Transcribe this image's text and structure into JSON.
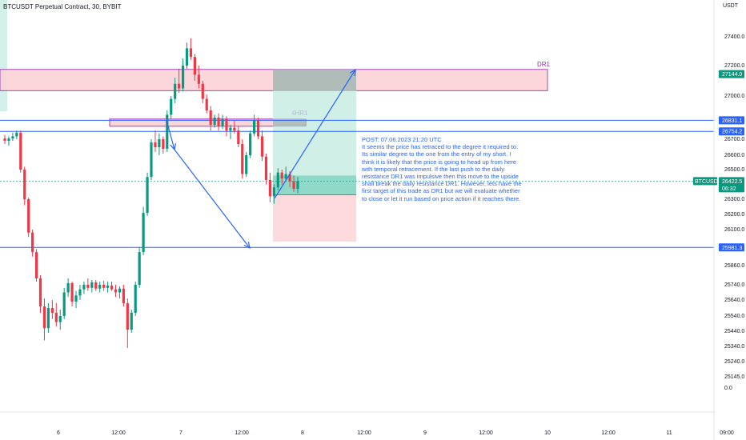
{
  "header": {
    "title": "BTCUSDT Perpetual Contract, 30, BYBIT",
    "currency": "USDT"
  },
  "note": {
    "heading": "POST: 07.06.2023 21:20 UTC",
    "body": "It seems the price has retraced to the degree it required to. Its similar degree to the one from the entry of my short. I think it is likely that the price is going to head up from here with temporal retracement. If the last push to the daily resistance DR1 was impulsive then this move to the upside shall break the daily resistance DR1. However, lets have the first target of this trade as DR1 but we will evaluate whether to close or let it run based on price action if it reaches there."
  },
  "chart_data": {
    "type": "candlestick",
    "symbol": "BTCUSDT.P",
    "y_ticks": [
      "27400.0",
      "27200.0",
      "27000.0",
      "26700.0",
      "26600.0",
      "26500.0",
      "26300.0",
      "26200.0",
      "26100.0",
      "25860.0",
      "25740.0",
      "25640.0",
      "25540.0",
      "25440.0",
      "25340.0",
      "25240.0",
      "25145.0",
      "0.0"
    ],
    "x_ticks": [
      "6",
      "12:00",
      "7",
      "12:00",
      "8",
      "12:00",
      "9",
      "12:00",
      "10",
      "12:00",
      "11",
      "09:00"
    ],
    "price_tags": [
      {
        "label": "27144.0",
        "color": "#089981"
      },
      {
        "label": "26831.1",
        "color": "#2962ff"
      },
      {
        "label": "26754.2",
        "color": "#2962ff"
      },
      {
        "label": "BTCUSDT.P",
        "color": "#089981"
      },
      {
        "label": "26422.5",
        "color": "#089981"
      },
      {
        "label": "06:32",
        "color": "#089981"
      },
      {
        "label": "25981.3",
        "color": "#2962ff"
      }
    ],
    "horizontal_levels": [
      26831.1,
      26754.2,
      25981.3
    ],
    "zones": [
      {
        "label": "DR1",
        "from": 27035,
        "to": 27175,
        "color": "#f23645"
      },
      {
        "label": "4HR1",
        "from": 26790,
        "to": 26840,
        "color": "#f23645"
      }
    ],
    "position": {
      "side": "long",
      "entry": 26330,
      "target": 27175,
      "stop": 26020
    },
    "candles": [
      [
        26705,
        26730,
        26670,
        26690
      ],
      [
        26690,
        26720,
        26660,
        26705
      ],
      [
        26705,
        26745,
        26690,
        26720
      ],
      [
        26720,
        26760,
        26700,
        26745
      ],
      [
        26745,
        26760,
        26480,
        26500
      ],
      [
        26500,
        26520,
        26260,
        26300
      ],
      [
        26300,
        26310,
        26050,
        26080
      ],
      [
        26080,
        26100,
        25920,
        25950
      ],
      [
        25950,
        25970,
        25760,
        25780
      ],
      [
        25780,
        25800,
        25560,
        25600
      ],
      [
        25600,
        25650,
        25380,
        25460
      ],
      [
        25460,
        25620,
        25430,
        25590
      ],
      [
        25590,
        25640,
        25520,
        25560
      ],
      [
        25560,
        25620,
        25470,
        25500
      ],
      [
        25500,
        25580,
        25450,
        25540
      ],
      [
        25540,
        25720,
        25520,
        25690
      ],
      [
        25690,
        25780,
        25660,
        25750
      ],
      [
        25750,
        25760,
        25600,
        25630
      ],
      [
        25630,
        25700,
        25590,
        25670
      ],
      [
        25670,
        25740,
        25640,
        25710
      ],
      [
        25710,
        25760,
        25680,
        25740
      ],
      [
        25740,
        25780,
        25700,
        25720
      ],
      [
        25720,
        25770,
        25690,
        25755
      ],
      [
        25755,
        25770,
        25700,
        25715
      ],
      [
        25715,
        25760,
        25690,
        25740
      ],
      [
        25740,
        25765,
        25700,
        25720
      ],
      [
        25720,
        25760,
        25690,
        25735
      ],
      [
        25735,
        25760,
        25700,
        25710
      ],
      [
        25710,
        25740,
        25660,
        25690
      ],
      [
        25690,
        25730,
        25650,
        25715
      ],
      [
        25715,
        25740,
        25600,
        25620
      ],
      [
        25620,
        25650,
        25330,
        25450
      ],
      [
        25450,
        25580,
        25430,
        25560
      ],
      [
        25560,
        25760,
        25540,
        25740
      ],
      [
        25740,
        25980,
        25720,
        25950
      ],
      [
        25950,
        26250,
        25930,
        26210
      ],
      [
        26210,
        26480,
        26190,
        26450
      ],
      [
        26450,
        26700,
        26430,
        26680
      ],
      [
        26680,
        26760,
        26620,
        26650
      ],
      [
        26650,
        26740,
        26600,
        26700
      ],
      [
        26700,
        26720,
        26610,
        26640
      ],
      [
        26640,
        26900,
        26620,
        26870
      ],
      [
        26870,
        27000,
        26840,
        26980
      ],
      [
        26980,
        27120,
        26950,
        27080
      ],
      [
        27080,
        27180,
        27020,
        27050
      ],
      [
        27050,
        27250,
        27030,
        27200
      ],
      [
        27200,
        27360,
        27180,
        27320
      ],
      [
        27320,
        27390,
        27240,
        27260
      ],
      [
        27260,
        27280,
        27100,
        27140
      ],
      [
        27140,
        27200,
        27050,
        27080
      ],
      [
        27080,
        27100,
        26950,
        26980
      ],
      [
        26980,
        27010,
        26880,
        26900
      ],
      [
        26900,
        26930,
        26760,
        26800
      ],
      [
        26800,
        26870,
        26780,
        26850
      ],
      [
        26850,
        26880,
        26760,
        26790
      ],
      [
        26790,
        26870,
        26770,
        26840
      ],
      [
        26840,
        26860,
        26720,
        26760
      ],
      [
        26760,
        26800,
        26700,
        26780
      ],
      [
        26780,
        26830,
        26740,
        26760
      ],
      [
        26760,
        26790,
        26650,
        26670
      ],
      [
        26670,
        26700,
        26440,
        26470
      ],
      [
        26470,
        26620,
        26450,
        26600
      ],
      [
        26600,
        26760,
        26580,
        26740
      ],
      [
        26740,
        26870,
        26720,
        26830
      ],
      [
        26830,
        26850,
        26700,
        26720
      ],
      [
        26720,
        26760,
        26560,
        26590
      ],
      [
        26590,
        26610,
        26400,
        26430
      ],
      [
        26430,
        26480,
        26280,
        26320
      ],
      [
        26320,
        26400,
        26270,
        26380
      ],
      [
        26380,
        26510,
        26360,
        26480
      ],
      [
        26480,
        26500,
        26400,
        26440
      ],
      [
        26440,
        26520,
        26420,
        26470
      ],
      [
        26470,
        26490,
        26380,
        26420
      ],
      [
        26420,
        26460,
        26350,
        26370
      ],
      [
        26370,
        26450,
        26340,
        26422
      ]
    ]
  }
}
